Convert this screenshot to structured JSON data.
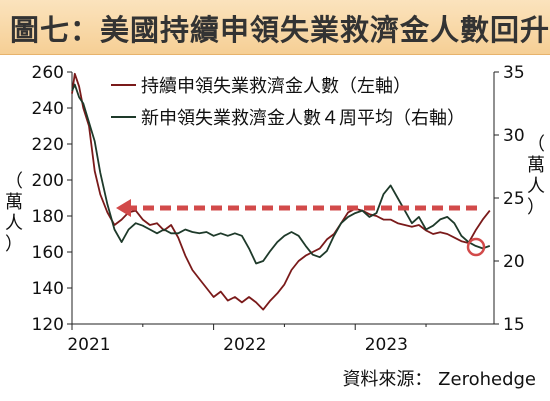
{
  "title": "圖七：美國持續申領失業救濟金人數回升",
  "source": "資料來源： Zerohedge",
  "colors": {
    "left_series": "#7a1a1a",
    "right_series": "#1e3a2a",
    "arrow": "#d24a4a",
    "circle": "#d24a4a",
    "title_bg": "#f8d9a8"
  },
  "chart_data": {
    "type": "line",
    "ylabel_left": [
      "（",
      "萬",
      "人",
      "）"
    ],
    "ylabel_right": [
      "（",
      "萬",
      "人",
      "）"
    ],
    "ylim_left": [
      120,
      260
    ],
    "ylim_right": [
      15,
      35
    ],
    "yticks_left": [
      120,
      140,
      160,
      180,
      200,
      220,
      240,
      260
    ],
    "yticks_right": [
      15,
      20,
      25,
      30,
      35
    ],
    "x_tick_labels": [
      "2021",
      "2022",
      "2023"
    ],
    "xlim": [
      2021.0,
      2023.98
    ],
    "legend_position": "top",
    "series": [
      {
        "name": "持續申領失業救濟金人數（左軸）",
        "axis": "left",
        "x": [
          2021.0,
          2021.02,
          2021.05,
          2021.08,
          2021.12,
          2021.16,
          2021.2,
          2021.25,
          2021.3,
          2021.35,
          2021.4,
          2021.45,
          2021.5,
          2021.55,
          2021.6,
          2021.65,
          2021.7,
          2021.75,
          2021.8,
          2021.85,
          2021.9,
          2021.95,
          2022.0,
          2022.05,
          2022.1,
          2022.15,
          2022.2,
          2022.25,
          2022.3,
          2022.35,
          2022.4,
          2022.45,
          2022.5,
          2022.55,
          2022.6,
          2022.65,
          2022.7,
          2022.75,
          2022.8,
          2022.85,
          2022.9,
          2022.95,
          2023.0,
          2023.05,
          2023.1,
          2023.15,
          2023.2,
          2023.25,
          2023.3,
          2023.35,
          2023.4,
          2023.45,
          2023.5,
          2023.55,
          2023.6,
          2023.65,
          2023.7,
          2023.75,
          2023.8,
          2023.85,
          2023.9,
          2023.95
        ],
        "values": [
          248,
          259,
          252,
          240,
          230,
          205,
          192,
          182,
          175,
          178,
          182,
          183,
          178,
          175,
          176,
          172,
          175,
          168,
          158,
          150,
          145,
          140,
          135,
          138,
          133,
          135,
          132,
          135,
          132,
          128,
          133,
          137,
          142,
          150,
          155,
          158,
          160,
          162,
          167,
          170,
          176,
          182,
          184,
          183,
          181,
          180,
          178,
          178,
          176,
          175,
          174,
          175,
          172,
          170,
          171,
          170,
          168,
          166,
          165,
          172,
          178,
          183
        ]
      },
      {
        "name": "新申領失業救濟金人數４周平均（右軸）",
        "axis": "right",
        "x": [
          2021.0,
          2021.02,
          2021.05,
          2021.08,
          2021.12,
          2021.16,
          2021.2,
          2021.25,
          2021.3,
          2021.35,
          2021.4,
          2021.45,
          2021.5,
          2021.55,
          2021.6,
          2021.65,
          2021.7,
          2021.75,
          2021.8,
          2021.85,
          2021.9,
          2021.95,
          2022.0,
          2022.05,
          2022.1,
          2022.15,
          2022.2,
          2022.25,
          2022.3,
          2022.35,
          2022.4,
          2022.45,
          2022.5,
          2022.55,
          2022.6,
          2022.65,
          2022.7,
          2022.75,
          2022.8,
          2022.85,
          2022.9,
          2022.95,
          2023.0,
          2023.05,
          2023.1,
          2023.15,
          2023.2,
          2023.25,
          2023.3,
          2023.35,
          2023.4,
          2023.45,
          2023.5,
          2023.55,
          2023.6,
          2023.65,
          2023.7,
          2023.75,
          2023.8,
          2023.85,
          2023.9,
          2023.95
        ],
        "values": [
          33.5,
          34.0,
          33.0,
          32.5,
          31.0,
          29.5,
          27.0,
          24.5,
          22.5,
          21.5,
          22.5,
          23.0,
          22.8,
          22.5,
          22.2,
          22.5,
          22.2,
          22.2,
          22.5,
          22.3,
          22.2,
          22.3,
          22.0,
          22.2,
          22.0,
          22.2,
          22.0,
          21.0,
          19.8,
          20.0,
          20.8,
          21.5,
          22.0,
          22.3,
          22.0,
          21.2,
          20.5,
          20.3,
          20.8,
          22.0,
          23.0,
          23.5,
          23.8,
          24.0,
          23.5,
          23.8,
          25.3,
          26.0,
          25.0,
          24.0,
          23.0,
          23.5,
          22.5,
          22.8,
          23.3,
          23.5,
          23.0,
          22.0,
          21.5,
          21.2,
          21.0,
          21.2
        ]
      }
    ]
  }
}
